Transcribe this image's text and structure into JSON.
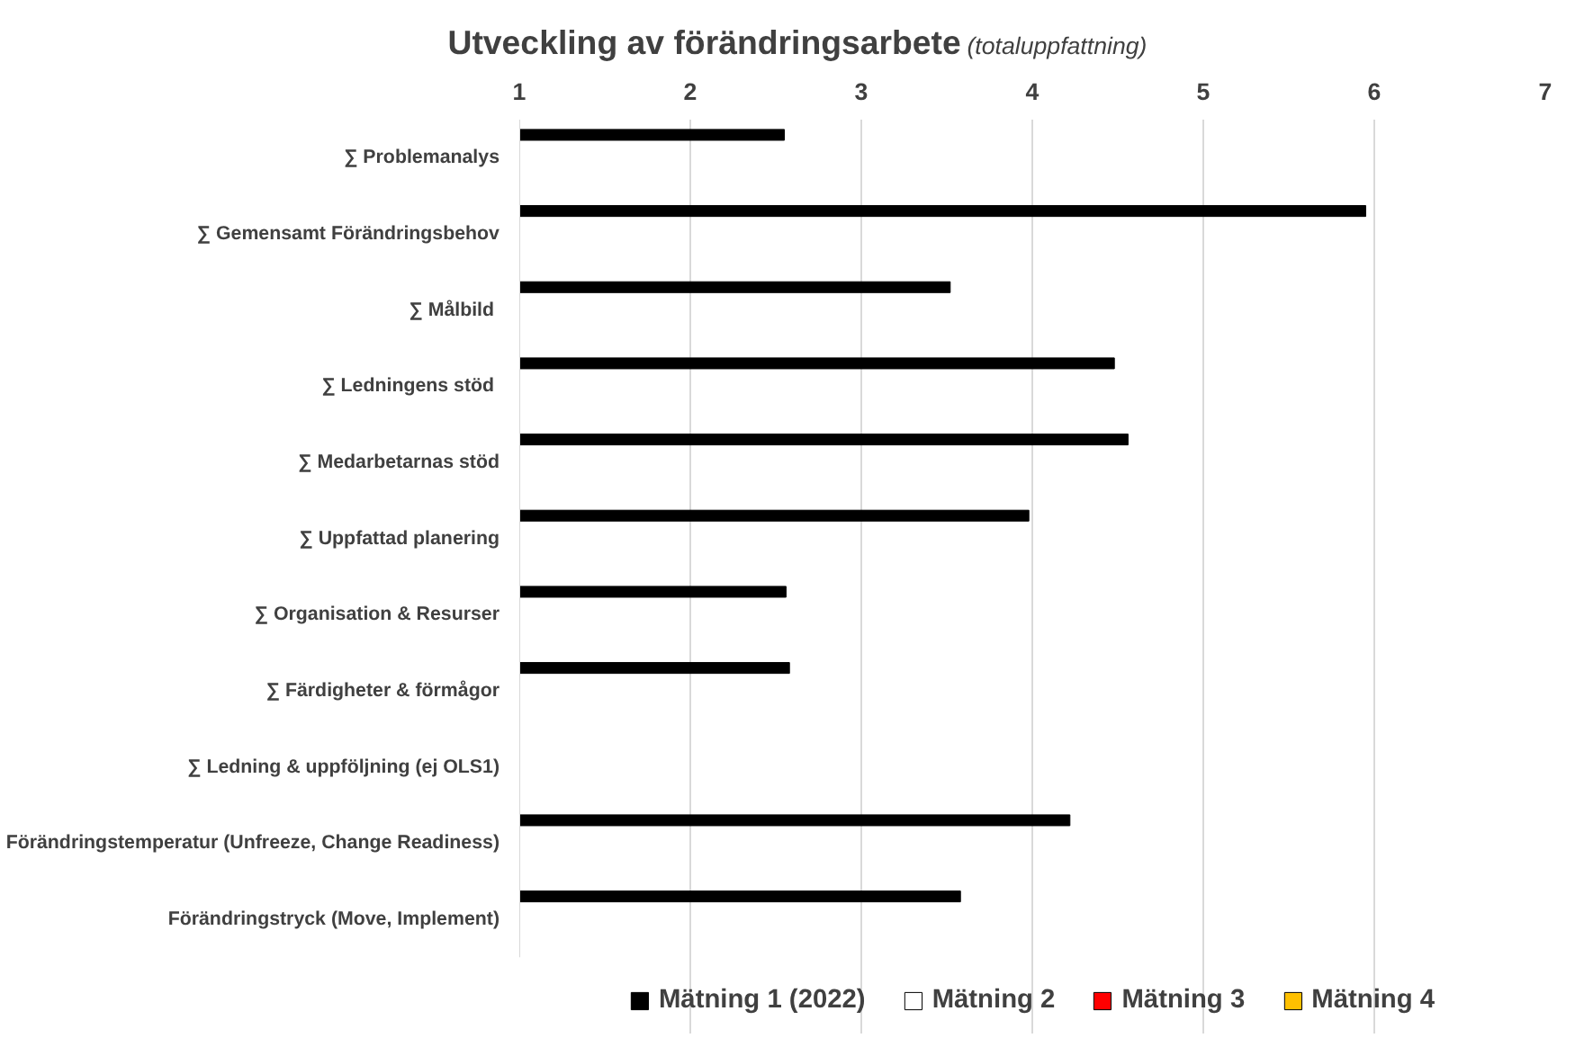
{
  "chart_data": {
    "type": "bar",
    "orientation": "horizontal",
    "title": "Utveckling av förändringsarbete",
    "subtitle": "(totaluppfattning)",
    "categories": [
      "∑ Problemanalys",
      "∑ Gemensamt Förändringsbehov",
      "∑  Målbild",
      "∑  Ledningens stöd",
      "∑ Medarbetarnas stöd",
      "∑ Uppfattad planering",
      "∑ Organisation & Resurser",
      "∑ Färdigheter & förmågor",
      "∑ Ledning & uppföljning (ej OLS1)",
      "Förändringstemperatur (Unfreeze, Change Readiness)",
      "Förändringstryck (Move, Implement)"
    ],
    "series": [
      {
        "name": "Mätning 1 (2022)",
        "color": "#000000",
        "values": [
          2.55,
          5.95,
          3.52,
          4.48,
          4.56,
          3.98,
          2.56,
          2.58,
          null,
          4.22,
          3.58
        ]
      },
      {
        "name": "Mätning 2",
        "color": "#ffffff",
        "values": [
          null,
          null,
          null,
          null,
          null,
          null,
          null,
          null,
          null,
          null,
          null
        ]
      },
      {
        "name": "Mätning 3",
        "color": "#ff0000",
        "values": [
          null,
          null,
          null,
          null,
          null,
          null,
          null,
          null,
          null,
          null,
          null
        ]
      },
      {
        "name": "Mätning 4",
        "color": "#ffc000",
        "values": [
          null,
          null,
          null,
          null,
          null,
          null,
          null,
          null,
          null,
          null,
          null
        ]
      }
    ],
    "xlim": [
      1,
      7
    ],
    "xticks": [
      1,
      2,
      3,
      4,
      5,
      6,
      7
    ],
    "grid": "x",
    "legend": "bottom"
  }
}
